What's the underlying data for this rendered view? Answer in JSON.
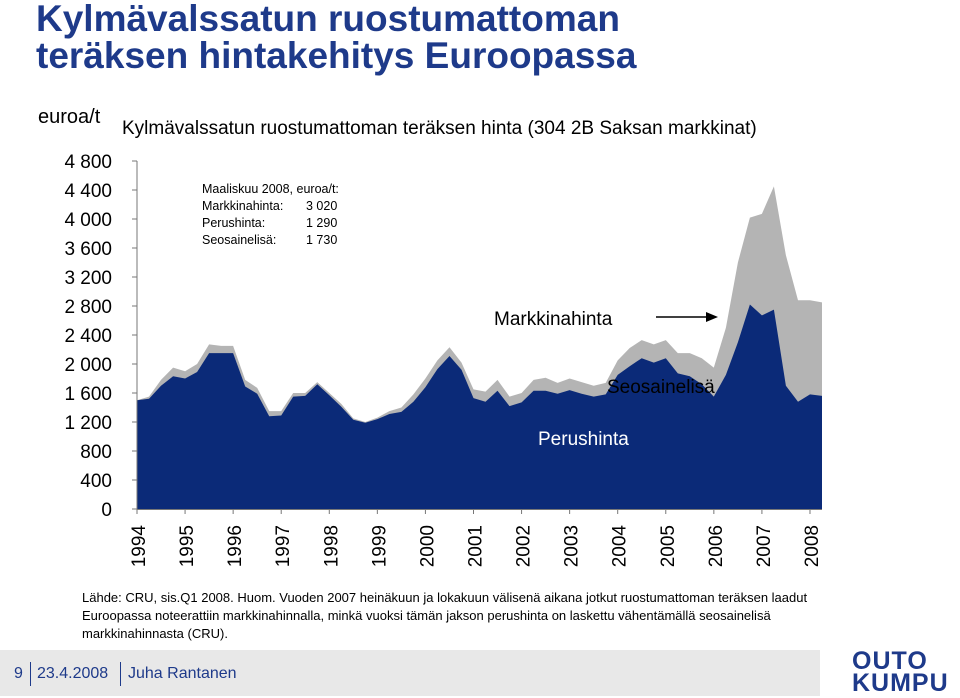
{
  "header": {
    "title_line1": "Kylmävalssatun ruostumattoman",
    "title_line2": "teräksen hintakehitys Euroopassa"
  },
  "chart_data": {
    "type": "area",
    "title": "Kylmävalssatun ruostumattoman teräksen hinta (304 2B Saksan markkinat)",
    "ylabel": "euroa/t",
    "ylim": [
      0,
      4800
    ],
    "y_ticks": [
      "4 800",
      "4 400",
      "4 000",
      "3 600",
      "3 200",
      "2 800",
      "2 400",
      "2 000",
      "1 600",
      "1 200",
      "800",
      "400",
      "0"
    ],
    "x_ticks": [
      "1994",
      "1995",
      "1996",
      "1997",
      "1998",
      "1999",
      "2000",
      "2001",
      "2002",
      "2003",
      "2004",
      "2005",
      "2006",
      "2007",
      "2008"
    ],
    "x": [
      1994.0,
      1994.25,
      1994.5,
      1994.75,
      1995.0,
      1995.25,
      1995.5,
      1995.75,
      1996.0,
      1996.25,
      1996.5,
      1996.75,
      1997.0,
      1997.25,
      1997.5,
      1997.75,
      1998.0,
      1998.25,
      1998.5,
      1998.75,
      1999.0,
      1999.25,
      1999.5,
      1999.75,
      2000.0,
      2000.25,
      2000.5,
      2000.75,
      2001.0,
      2001.25,
      2001.5,
      2001.75,
      2002.0,
      2002.25,
      2002.5,
      2002.75,
      2003.0,
      2003.25,
      2003.5,
      2003.75,
      2004.0,
      2004.25,
      2004.5,
      2004.75,
      2005.0,
      2005.25,
      2005.5,
      2005.75,
      2006.0,
      2006.25,
      2006.5,
      2006.75,
      2007.0,
      2007.25,
      2007.5,
      2007.75,
      2008.0,
      2008.25
    ],
    "series": [
      {
        "name": "Markkinahinta",
        "values": [
          1500,
          1550,
          1780,
          1950,
          1900,
          2000,
          2270,
          2250,
          2250,
          1780,
          1670,
          1350,
          1350,
          1600,
          1600,
          1750,
          1600,
          1450,
          1250,
          1200,
          1260,
          1350,
          1400,
          1580,
          1800,
          2050,
          2230,
          2020,
          1650,
          1620,
          1780,
          1550,
          1600,
          1780,
          1810,
          1740,
          1800,
          1750,
          1700,
          1740,
          2050,
          2220,
          2330,
          2270,
          2330,
          2150,
          2150,
          2080,
          1950,
          2500,
          3400,
          4020,
          4070,
          4450,
          3500,
          2880,
          2880,
          2850
        ]
      },
      {
        "name": "Seosainelisä",
        "values": [
          0,
          30,
          80,
          120,
          100,
          110,
          120,
          100,
          100,
          90,
          80,
          70,
          60,
          50,
          40,
          30,
          30,
          40,
          20,
          10,
          20,
          40,
          60,
          100,
          120,
          120,
          120,
          100,
          120,
          140,
          150,
          130,
          130,
          150,
          180,
          150,
          160,
          160,
          150,
          160,
          200,
          250,
          250,
          250,
          250,
          280,
          320,
          360,
          400,
          650,
          1100,
          1200,
          1400,
          1700,
          1800,
          1400,
          1300,
          1290
        ]
      },
      {
        "name": "Perushinta",
        "values": [
          1500,
          1520,
          1700,
          1830,
          1800,
          1890,
          2150,
          2150,
          2150,
          1690,
          1590,
          1280,
          1290,
          1550,
          1560,
          1720,
          1570,
          1410,
          1230,
          1190,
          1240,
          1310,
          1340,
          1480,
          1680,
          1930,
          2110,
          1920,
          1530,
          1480,
          1630,
          1420,
          1470,
          1630,
          1630,
          1590,
          1640,
          1590,
          1550,
          1580,
          1850,
          1970,
          2080,
          2020,
          2080,
          1870,
          1830,
          1720,
          1550,
          1850,
          2300,
          2820,
          2670,
          2750,
          1700,
          1480,
          1580,
          1560
        ]
      }
    ],
    "annotations": {
      "box": [
        {
          "label": "Maaliskuu 2008, euroa/t:",
          "value": ""
        },
        {
          "label": "Markkinahinta:",
          "value": "3 020"
        },
        {
          "label": "Perushinta:",
          "value": "1 290"
        },
        {
          "label": "Seosainelisä:",
          "value": "1 730"
        }
      ],
      "markkinahinta": "Markkinahinta",
      "seosainelisa": "Seosainelisä",
      "perushinta": "Perushinta"
    },
    "colors": {
      "base": "#0b2a78",
      "alloy": "#b4b4b4",
      "title": "#1e3a8a",
      "footer_bg": "#e8e8e8"
    },
    "grid": false,
    "legend": "none"
  },
  "source": "Lähde: CRU, sis.Q1 2008. Huom. Vuoden 2007 heinäkuun ja lokakuun välisenä aikana jotkut ruostumattoman teräksen laadut Euroopassa noteerattiin markkinahinnalla, minkä vuoksi tämän jakson perushinta on laskettu vähentämällä seosainelisä markkinahinnasta (CRU).",
  "footer": {
    "page": "9",
    "date": "23.4.2008",
    "author": "Juha Rantanen"
  },
  "logo": {
    "line1": "OUTO",
    "line2": "KUMPU"
  }
}
